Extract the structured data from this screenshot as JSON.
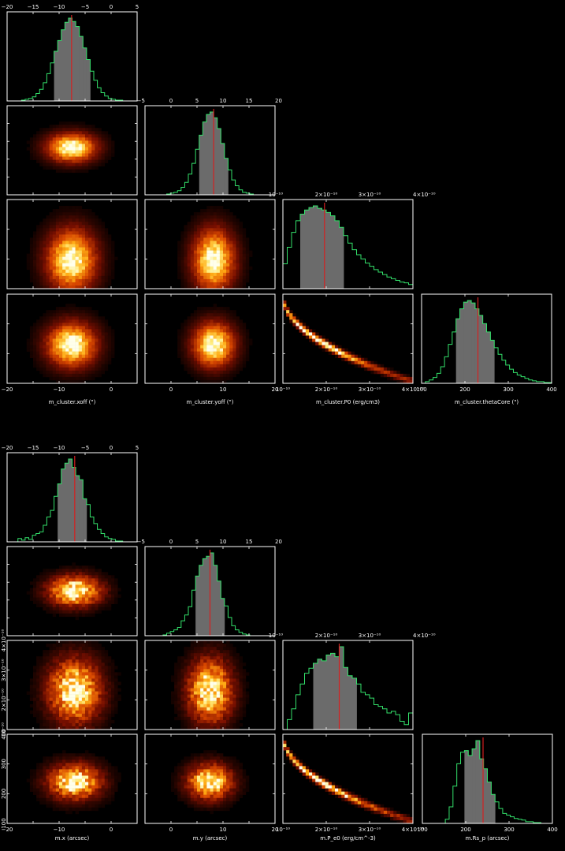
{
  "colors": {
    "background": "#000000",
    "frame": "#ffffff",
    "histogram_step": "#33e06a",
    "credible_fill": "#6b6b6b",
    "median_line": "#d42020"
  },
  "chart_data": [
    {
      "type": "corner",
      "variables": [
        {
          "name": "x_off",
          "label": "m_cluster.xoff (\")",
          "range": [
            -20,
            5
          ],
          "ticks": [
            -20,
            -15,
            -10,
            -5,
            0,
            5
          ],
          "tick_labels": [
            "−20",
            "−15",
            "−10",
            "−5",
            "0",
            "5"
          ],
          "bottom_ticks": [
            -20,
            -10,
            0
          ],
          "bottom_labels": [
            "−20",
            "−10",
            "0"
          ],
          "median": -7.6,
          "interval": [
            -11.2,
            -4.3
          ],
          "hist": [
            0,
            0,
            0,
            0,
            0.01,
            0.02,
            0.03,
            0.05,
            0.09,
            0.14,
            0.22,
            0.33,
            0.46,
            0.6,
            0.73,
            0.86,
            0.95,
            1.0,
            0.96,
            0.9,
            0.78,
            0.64,
            0.5,
            0.36,
            0.25,
            0.16,
            0.1,
            0.06,
            0.03,
            0.02,
            0.01,
            0.01,
            0,
            0,
            0,
            0
          ]
        },
        {
          "name": "y_off",
          "label": "m_cluster.yoff (\")",
          "range": [
            -5,
            20
          ],
          "ticks": [
            -5,
            0,
            5,
            10,
            15,
            20
          ],
          "tick_labels": [
            "−5",
            "0",
            "5",
            "10",
            "15",
            "20"
          ],
          "bottom_ticks": [
            0,
            10,
            20
          ],
          "bottom_labels": [
            "0",
            "10",
            "20"
          ],
          "median": 8.2,
          "interval": [
            5.2,
            11.0
          ],
          "hist": [
            0,
            0,
            0,
            0,
            0,
            0,
            0.01,
            0.02,
            0.03,
            0.05,
            0.09,
            0.15,
            0.25,
            0.38,
            0.55,
            0.72,
            0.88,
            0.97,
            1.0,
            0.93,
            0.8,
            0.62,
            0.44,
            0.3,
            0.18,
            0.11,
            0.06,
            0.03,
            0.02,
            0.01,
            0,
            0,
            0,
            0,
            0,
            0
          ]
        },
        {
          "name": "P0",
          "label": "m_cluster.P0 (erg/cm3)",
          "range": [
            1e-10,
            4e-10
          ],
          "ticks": [
            1e-10,
            2e-10,
            3e-10,
            4e-10
          ],
          "top_labels": [
            "10⁻¹⁰",
            "2×10⁻¹⁰",
            "3×10⁻¹⁰",
            "4×10⁻¹⁰"
          ],
          "bottom_labels": [
            "10⁻¹⁰",
            "2×10⁻¹⁰",
            "3×10⁻¹⁰",
            "4×10⁻¹⁰"
          ],
          "median": 1.96e-10,
          "interval": [
            1.4e-10,
            2.4e-10
          ],
          "hist": [
            0.3,
            0.5,
            0.68,
            0.82,
            0.9,
            0.95,
            0.98,
            1.0,
            0.97,
            0.95,
            0.92,
            0.88,
            0.82,
            0.74,
            0.64,
            0.55,
            0.47,
            0.41,
            0.36,
            0.31,
            0.27,
            0.23,
            0.2,
            0.17,
            0.14,
            0.12,
            0.1,
            0.08,
            0.07,
            0.05
          ]
        },
        {
          "name": "thetaCore",
          "label": "m_cluster.thetaCore (\")",
          "range": [
            100,
            400
          ],
          "ticks": [
            100,
            200,
            300,
            400
          ],
          "bottom_labels": [
            "100",
            "200",
            "300",
            "400"
          ],
          "median": 230,
          "interval": [
            180,
            265
          ],
          "hist": [
            0,
            0.02,
            0.04,
            0.07,
            0.12,
            0.2,
            0.32,
            0.47,
            0.62,
            0.78,
            0.9,
            0.98,
            1.0,
            0.97,
            0.9,
            0.82,
            0.72,
            0.62,
            0.52,
            0.43,
            0.35,
            0.28,
            0.22,
            0.17,
            0.13,
            0.1,
            0.08,
            0.06,
            0.04,
            0.03,
            0.02,
            0.02,
            0.01,
            0.01
          ]
        }
      ]
    },
    {
      "type": "corner",
      "variables": [
        {
          "name": "x",
          "label": "m.x (arcsec)",
          "range": [
            -20,
            5
          ],
          "ticks": [
            -20,
            -15,
            -10,
            -5,
            0,
            5
          ],
          "tick_labels": [
            "−20",
            "−15",
            "−10",
            "−5",
            "0",
            "5"
          ],
          "bottom_ticks": [
            -20,
            -10,
            0
          ],
          "bottom_labels": [
            "−20",
            "−10",
            "0"
          ],
          "median": -7.0,
          "interval": [
            -10.0,
            -4.5
          ],
          "hist": [
            0,
            0,
            0,
            0.04,
            0.02,
            0.05,
            0.03,
            0.08,
            0.1,
            0.12,
            0.2,
            0.3,
            0.38,
            0.55,
            0.7,
            0.88,
            0.95,
            1.0,
            0.9,
            0.8,
            0.75,
            0.52,
            0.45,
            0.3,
            0.22,
            0.15,
            0.1,
            0.06,
            0.04,
            0.03,
            0.01,
            0.01,
            0,
            0,
            0,
            0
          ]
        },
        {
          "name": "y",
          "label": "m.y (arcsec)",
          "range": [
            -5,
            20
          ],
          "ticks": [
            -5,
            0,
            5,
            10,
            15,
            20
          ],
          "tick_labels": [
            "−5",
            "0",
            "5",
            "10",
            "15",
            "20"
          ],
          "bottom_ticks": [
            0,
            10,
            20
          ],
          "bottom_labels": [
            "0",
            "10",
            "20"
          ],
          "median": 7.5,
          "interval": [
            4.5,
            10.0
          ],
          "hist": [
            0,
            0,
            0,
            0,
            0,
            0.01,
            0.03,
            0.05,
            0.07,
            0.1,
            0.18,
            0.25,
            0.35,
            0.55,
            0.72,
            0.85,
            0.93,
            0.96,
            1.0,
            0.85,
            0.66,
            0.45,
            0.36,
            0.22,
            0.12,
            0.07,
            0.04,
            0.02,
            0.01,
            0,
            0,
            0,
            0,
            0,
            0,
            0
          ]
        },
        {
          "name": "P_e0",
          "label": "m.P_e0 (erg/cm^-3)",
          "range": [
            1e-10,
            4e-10
          ],
          "ticks": [
            1e-10,
            2e-10,
            3e-10,
            4e-10
          ],
          "top_labels": [
            "10⁻¹⁰",
            "2×10⁻¹⁰",
            "3×10⁻¹⁰",
            "4×10⁻¹⁰"
          ],
          "bottom_labels": [
            "10⁻¹⁰",
            "2×10⁻¹⁰",
            "3×10⁻¹⁰",
            "4×10⁻¹⁰"
          ],
          "left_labels": [
            "4×10⁻¹⁰",
            "3×10⁻¹⁰",
            "2×10⁻¹⁰",
            "10⁻¹⁰"
          ],
          "median": 2.3e-10,
          "interval": [
            1.75e-10,
            2.7e-10
          ],
          "hist": [
            0,
            0.12,
            0.25,
            0.42,
            0.55,
            0.68,
            0.74,
            0.8,
            0.85,
            0.83,
            0.9,
            0.92,
            0.88,
            1.0,
            0.75,
            0.65,
            0.62,
            0.55,
            0.45,
            0.42,
            0.38,
            0.3,
            0.28,
            0.25,
            0.2,
            0.22,
            0.18,
            0.1,
            0.06,
            0.2
          ]
        },
        {
          "name": "Rs_p",
          "label": "m.Rs_p (arcsec)",
          "range": [
            100,
            400
          ],
          "ticks": [
            100,
            200,
            300,
            400
          ],
          "bottom_labels": [
            "100",
            "200",
            "300",
            "400"
          ],
          "left_labels": [
            "400",
            "300",
            "200",
            "100"
          ],
          "median": 240,
          "interval": [
            200,
            270
          ],
          "hist": [
            0,
            0,
            0,
            0,
            0,
            0,
            0.05,
            0.2,
            0.45,
            0.72,
            0.86,
            0.88,
            0.82,
            0.9,
            1.0,
            0.78,
            0.66,
            0.5,
            0.35,
            0.26,
            0.18,
            0.12,
            0.1,
            0.08,
            0.06,
            0.05,
            0.04,
            0.02,
            0.02,
            0.01,
            0.01,
            0,
            0,
            0
          ]
        }
      ]
    }
  ]
}
